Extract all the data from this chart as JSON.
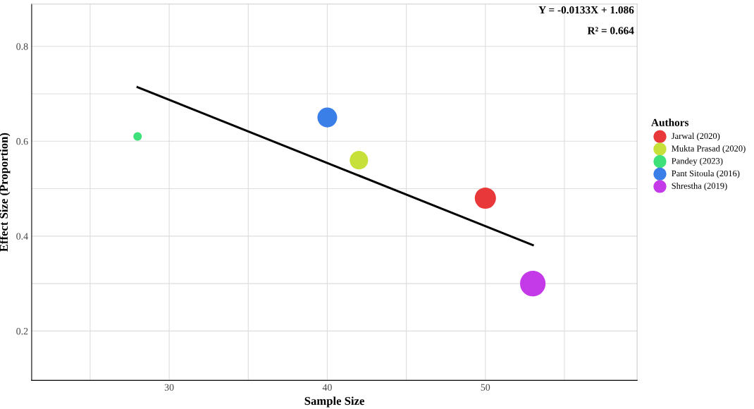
{
  "chart_data": {
    "type": "bubble",
    "xlabel": "Sample Size",
    "ylabel": "Effect Size (Proportion)",
    "legend_title": "Authors",
    "xlim": [
      21.3,
      59.6
    ],
    "ylim": [
      0.096,
      0.889
    ],
    "xticks": [
      {
        "value": 25,
        "label": null
      },
      30,
      {
        "value": 35,
        "label": null
      },
      40,
      {
        "value": 45,
        "label": null
      },
      50,
      {
        "value": 55,
        "label": null
      }
    ],
    "yticks": [
      0.2,
      {
        "value": 0.3,
        "label": null
      },
      0.4,
      {
        "value": 0.5,
        "label": null
      },
      0.6,
      {
        "value": 0.7,
        "label": null
      },
      0.8
    ],
    "grid": true,
    "legend": "right",
    "series": [
      {
        "name": "Jarwal (2020)",
        "color": "#e8383a",
        "x": [
          50
        ],
        "values": [
          0.48
        ],
        "sizes": [
          0.69
        ]
      },
      {
        "name": "Mukta Prasad (2020)",
        "color": "#c8e03a",
        "x": [
          42
        ],
        "values": [
          0.56
        ],
        "sizes": [
          0.52
        ]
      },
      {
        "name": "Pandey (2023)",
        "color": "#3ee07a",
        "x": [
          28
        ],
        "values": [
          0.61
        ],
        "sizes": [
          0.11
        ]
      },
      {
        "name": "Pant Sitoula (2016)",
        "color": "#3a7ee8",
        "x": [
          40
        ],
        "values": [
          0.65
        ],
        "sizes": [
          0.6
        ]
      },
      {
        "name": "Shrestha (2019)",
        "color": "#c43ae8",
        "x": [
          53
        ],
        "values": [
          0.3
        ],
        "sizes": [
          1
        ]
      },
      {
        "type": "line",
        "color": "#000000",
        "x": [
          28,
          53
        ],
        "values": [
          0.714,
          0.381
        ]
      }
    ],
    "annotations": [
      "Y = -0.0133X + 1.086",
      "R² = 0.664"
    ]
  }
}
